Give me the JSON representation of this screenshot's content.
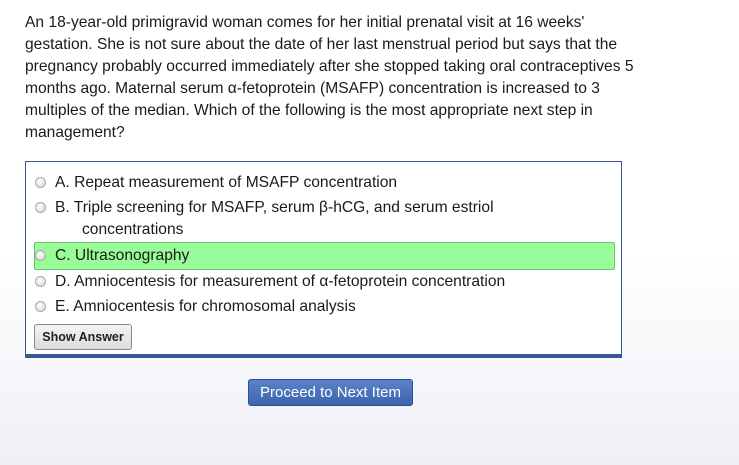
{
  "question": {
    "stem": "An 18-year-old primigravid woman comes for her initial prenatal visit at 16 weeks' gestation. She is not sure about the date of her last menstrual period but says that the pregnancy probably occurred immediately after she stopped taking oral contraceptives 5 months ago. Maternal serum α-fetoprotein (MSAFP) concentration is increased to 3 multiples of the median. Which of the following is the most appropriate next step in management?"
  },
  "choices": [
    {
      "text": "A. Repeat measurement of MSAFP concentration",
      "selected": false
    },
    {
      "text": "B. Triple screening for MSAFP, serum β-hCG, and serum estriol",
      "continuation": "concentrations",
      "selected": false
    },
    {
      "text": "C. Ultrasonography",
      "selected": true
    },
    {
      "text": "D. Amniocentesis for measurement of α-fetoprotein concentration",
      "selected": false
    },
    {
      "text": "E. Amniocentesis for chromosomal analysis",
      "selected": false
    }
  ],
  "buttons": {
    "show_answer": "Show Answer",
    "proceed": "Proceed to Next Item"
  },
  "colors": {
    "selected_highlight": "#98fc98",
    "box_border": "#3b5a95",
    "proceed_button": "#4a72bb"
  }
}
